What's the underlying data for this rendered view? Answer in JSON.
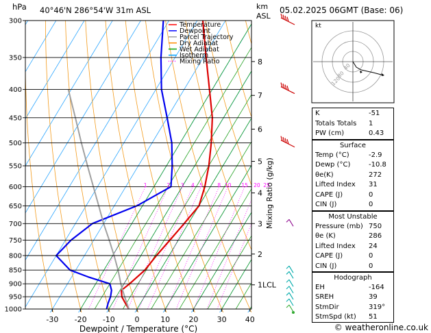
{
  "header": {
    "location": "40°46'N  286°54'W  31m  ASL",
    "datetime": "05.02.2025  06GMT  (Base: 06)",
    "p_unit": "hPa",
    "h_unit_km": "km",
    "h_unit_asl": "ASL"
  },
  "chart_data": {
    "type": "line",
    "title": "",
    "xlabel": "Dewpoint / Temperature (°C)",
    "ylabel": "hPa",
    "right_ylabel": "Mixing Ratio (g/kg)",
    "x_ticks": [
      -30,
      -20,
      -10,
      0,
      10,
      20,
      30,
      40
    ],
    "p_ticks": [
      300,
      350,
      400,
      450,
      500,
      550,
      600,
      650,
      700,
      750,
      800,
      850,
      900,
      950,
      1000
    ],
    "km_ticks": [
      {
        "label": "8",
        "p": 356
      },
      {
        "label": "7",
        "p": 410
      },
      {
        "label": "6",
        "p": 472
      },
      {
        "label": "5",
        "p": 540
      },
      {
        "label": "4",
        "p": 616
      },
      {
        "label": "3",
        "p": 700
      },
      {
        "label": "2",
        "p": 795
      },
      {
        "label": "1LCL",
        "p": 904
      }
    ],
    "mixing_ratio_labels": [
      "1",
      "2",
      "3",
      "4",
      "5",
      "8",
      "10",
      "15",
      "20",
      "25"
    ],
    "legend": [
      {
        "name": "Temperature",
        "color": "#ff0000"
      },
      {
        "name": "Dewpoint",
        "color": "#0000ff"
      },
      {
        "name": "Parcel Trajectory",
        "color": "#a0a0a0"
      },
      {
        "name": "Dry Adiabat",
        "color": "#ff8c00"
      },
      {
        "name": "Wet Adiabat",
        "color": "#00a000"
      },
      {
        "name": "Isotherm",
        "color": "#00a0ff"
      },
      {
        "name": "Mixing Ratio",
        "color": "#ff00ff"
      }
    ],
    "series": [
      {
        "name": "Temperature",
        "color": "#dd0000",
        "points": [
          [
            1000,
            -2.9
          ],
          [
            975,
            -5.5
          ],
          [
            950,
            -8
          ],
          [
            925,
            -9.5
          ],
          [
            900,
            -8
          ],
          [
            850,
            -5.5
          ],
          [
            800,
            -4.5
          ],
          [
            750,
            -3
          ],
          [
            700,
            -1.5
          ],
          [
            650,
            0
          ],
          [
            600,
            -2
          ],
          [
            550,
            -5
          ],
          [
            500,
            -9
          ],
          [
            450,
            -14
          ],
          [
            400,
            -21
          ],
          [
            350,
            -29
          ],
          [
            300,
            -38
          ]
        ]
      },
      {
        "name": "Dewpoint",
        "color": "#0000ee",
        "points": [
          [
            1000,
            -10.8
          ],
          [
            975,
            -11.5
          ],
          [
            950,
            -12
          ],
          [
            925,
            -13
          ],
          [
            900,
            -15
          ],
          [
            875,
            -24
          ],
          [
            850,
            -32
          ],
          [
            800,
            -40
          ],
          [
            750,
            -38
          ],
          [
            700,
            -34
          ],
          [
            650,
            -22
          ],
          [
            600,
            -14
          ],
          [
            550,
            -18
          ],
          [
            500,
            -23
          ],
          [
            450,
            -30
          ],
          [
            400,
            -38
          ],
          [
            350,
            -45
          ],
          [
            300,
            -52
          ]
        ]
      },
      {
        "name": "Parcel Trajectory",
        "color": "#a0a0a0",
        "points": [
          [
            1000,
            -2.9
          ],
          [
            950,
            -7
          ],
          [
            904,
            -10.8
          ],
          [
            850,
            -15
          ],
          [
            800,
            -19.5
          ],
          [
            750,
            -24.5
          ],
          [
            700,
            -30
          ],
          [
            650,
            -35.5
          ],
          [
            600,
            -41.5
          ],
          [
            550,
            -48
          ],
          [
            500,
            -55
          ],
          [
            450,
            -62.5
          ],
          [
            400,
            -71
          ]
        ]
      }
    ]
  },
  "hodograph": {
    "label": "kt",
    "ring_labels": [
      "40",
      "80",
      "120"
    ]
  },
  "indices": {
    "rows": [
      {
        "label": "K",
        "value": "-51"
      },
      {
        "label": "Totals Totals",
        "value": "1"
      },
      {
        "label": "PW (cm)",
        "value": "0.43"
      }
    ]
  },
  "surface": {
    "title": "Surface",
    "rows": [
      {
        "label": "Temp (°C)",
        "value": "-2.9"
      },
      {
        "label": "Dewp (°C)",
        "value": "-10.8"
      },
      {
        "label": "θe(K)",
        "value": "272"
      },
      {
        "label": "Lifted Index",
        "value": "31"
      },
      {
        "label": "CAPE (J)",
        "value": "0"
      },
      {
        "label": "CIN (J)",
        "value": "0"
      }
    ]
  },
  "most_unstable": {
    "title": "Most Unstable",
    "rows": [
      {
        "label": "Pressure (mb)",
        "value": "750"
      },
      {
        "label": "θe (K)",
        "value": "286"
      },
      {
        "label": "Lifted Index",
        "value": "24"
      },
      {
        "label": "CAPE (J)",
        "value": "0"
      },
      {
        "label": "CIN (J)",
        "value": "0"
      }
    ]
  },
  "hodograph_table": {
    "title": "Hodograph",
    "rows": [
      {
        "label": "EH",
        "value": "-164"
      },
      {
        "label": "SREH",
        "value": "39"
      },
      {
        "label": "StmDir",
        "value": "319°"
      },
      {
        "label": "StmSpd (kt)",
        "value": "51"
      }
    ]
  },
  "footer": {
    "copyright": "© weatheronline.co.uk"
  }
}
